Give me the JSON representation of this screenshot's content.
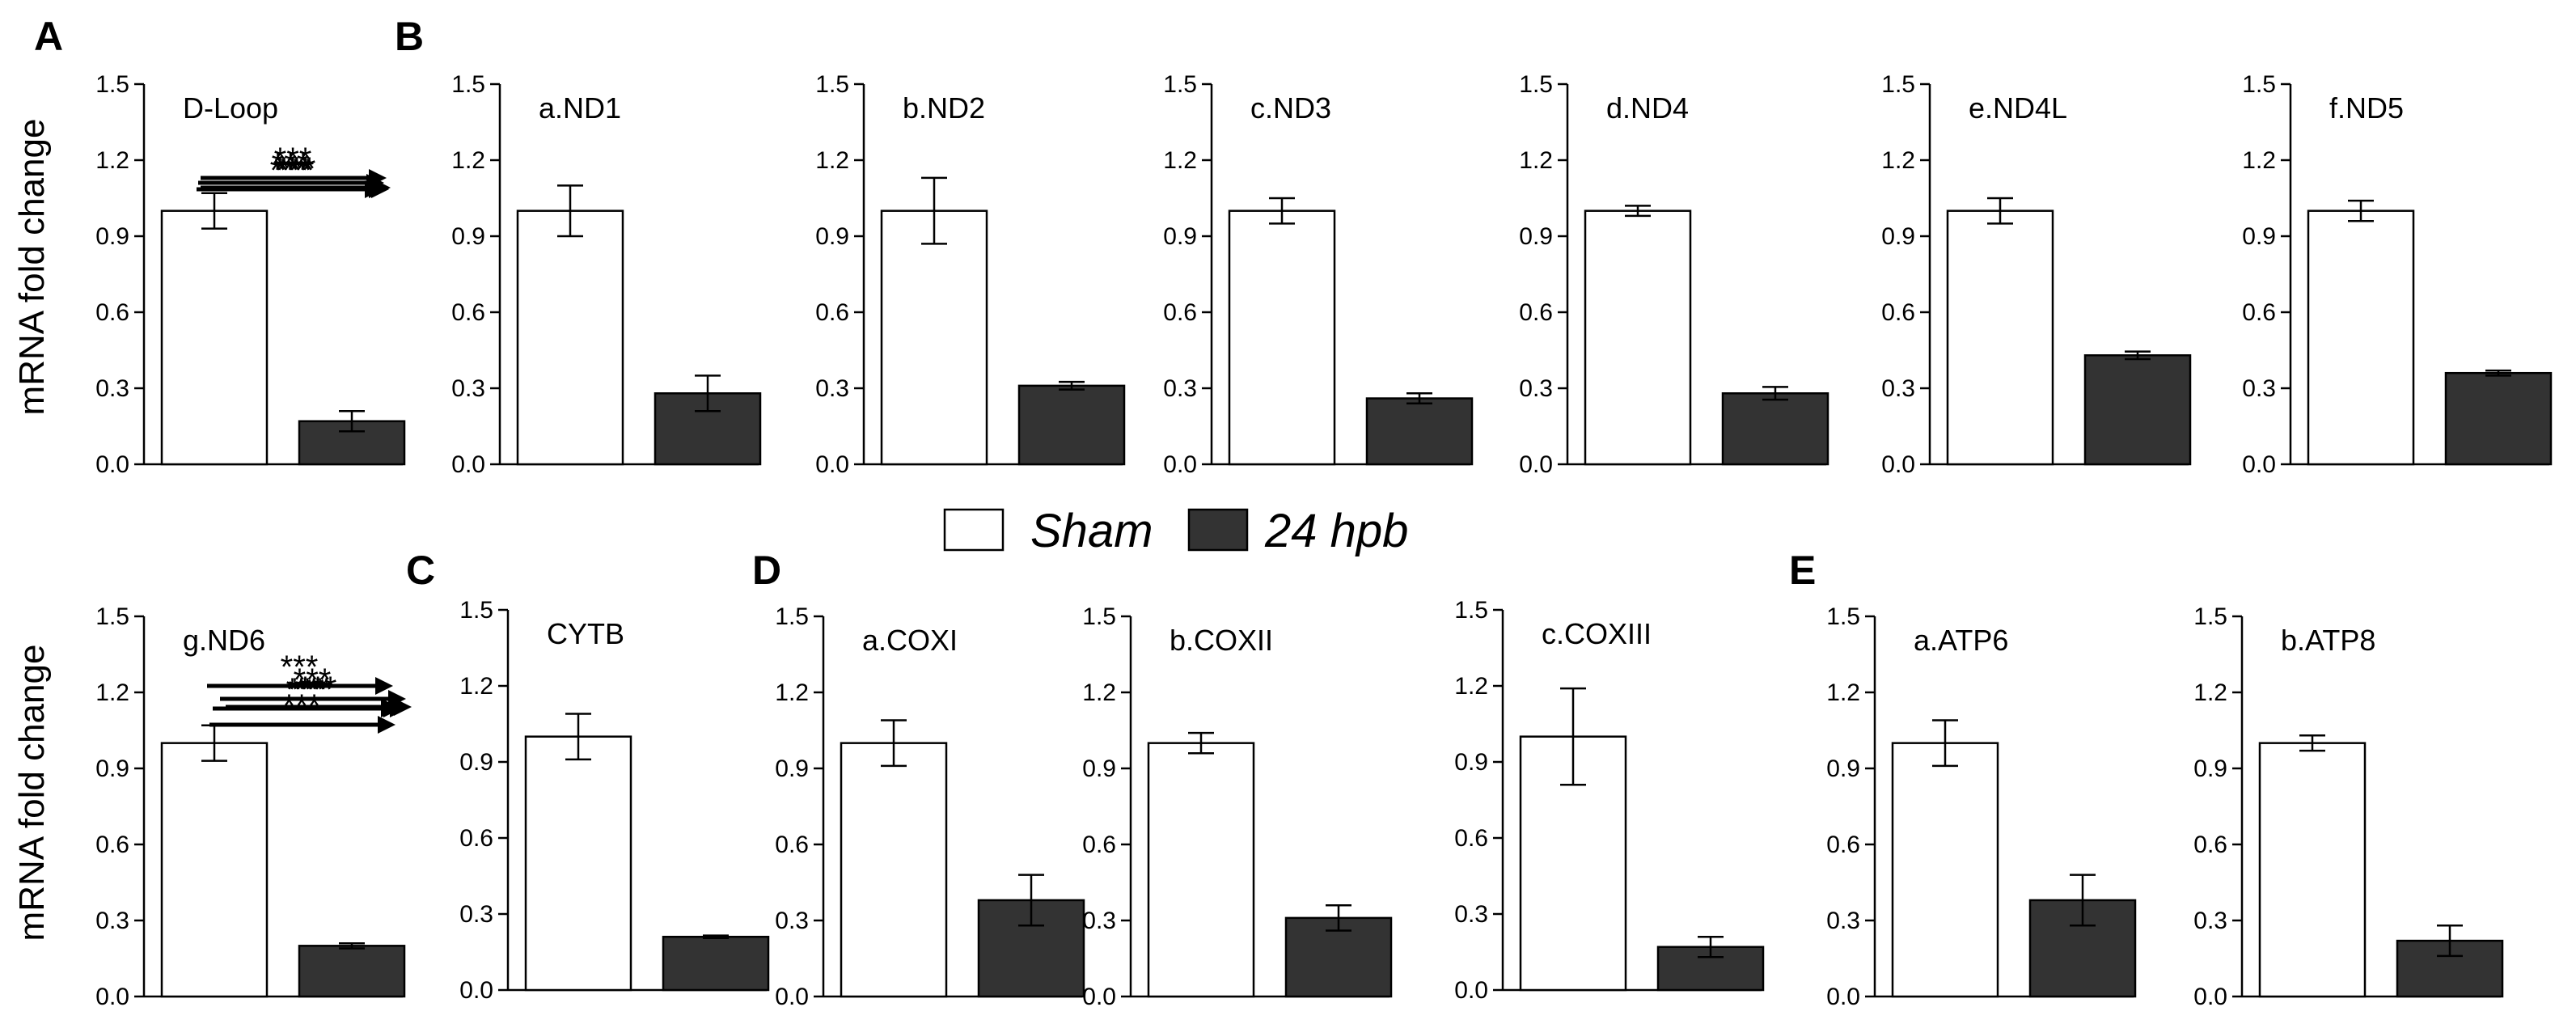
{
  "chart_data": {
    "type": "bar",
    "ylabel": "mRNA fold change",
    "ylim": [
      0,
      1.5
    ],
    "yticks": [
      "0.0",
      "0.3",
      "0.6",
      "0.9",
      "1.2",
      "1.5"
    ],
    "series_names": [
      "Sham",
      "24 hpb"
    ],
    "colors": {
      "sham": "#ffffff",
      "hpb": "#333333",
      "axis": "#000000"
    },
    "significance": "***",
    "letters": [
      "A",
      "B",
      "C",
      "D",
      "E"
    ],
    "panels": [
      {
        "title": "D-Loop",
        "values": [
          1.0,
          0.17
        ],
        "errors": [
          0.07,
          0.04
        ]
      },
      {
        "title": "a.ND1",
        "values": [
          1.0,
          0.28
        ],
        "errors": [
          0.1,
          0.07
        ]
      },
      {
        "title": "b.ND2",
        "values": [
          1.0,
          0.31
        ],
        "errors": [
          0.13,
          0.015
        ]
      },
      {
        "title": "c.ND3",
        "values": [
          1.0,
          0.26
        ],
        "errors": [
          0.05,
          0.02
        ]
      },
      {
        "title": "d.ND4",
        "values": [
          1.0,
          0.28
        ],
        "errors": [
          0.02,
          0.025
        ]
      },
      {
        "title": "e.ND4L",
        "values": [
          1.0,
          0.43
        ],
        "errors": [
          0.05,
          0.015
        ]
      },
      {
        "title": "f.ND5",
        "values": [
          1.0,
          0.36
        ],
        "errors": [
          0.04,
          0.01
        ]
      },
      {
        "title": "g.ND6",
        "values": [
          1.0,
          0.2
        ],
        "errors": [
          0.07,
          0.01
        ]
      },
      {
        "title": "CYTB",
        "values": [
          1.0,
          0.21
        ],
        "errors": [
          0.09,
          0.005
        ]
      },
      {
        "title": "a.COXI",
        "values": [
          1.0,
          0.38
        ],
        "errors": [
          0.09,
          0.1
        ]
      },
      {
        "title": "b.COXII",
        "values": [
          1.0,
          0.31
        ],
        "errors": [
          0.04,
          0.05
        ]
      },
      {
        "title": "c.COXIII",
        "values": [
          1.0,
          0.17
        ],
        "errors": [
          0.19,
          0.04
        ]
      },
      {
        "title": "a.ATP6",
        "values": [
          1.0,
          0.38
        ],
        "errors": [
          0.09,
          0.1
        ]
      },
      {
        "title": "b.ATP8",
        "values": [
          1.0,
          0.22
        ],
        "errors": [
          0.03,
          0.06
        ]
      }
    ]
  }
}
